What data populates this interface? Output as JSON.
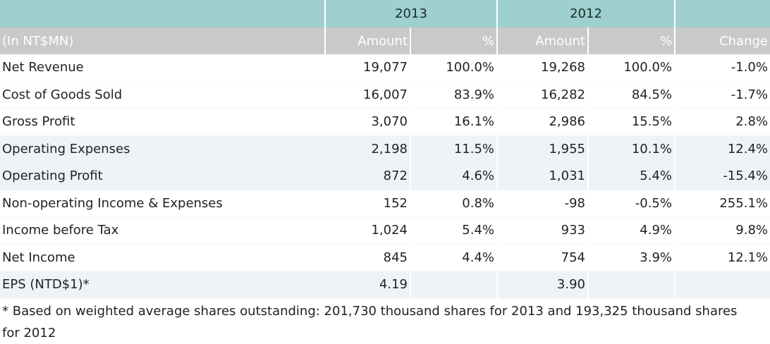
{
  "table": {
    "years": [
      "2013",
      "2012"
    ],
    "unit_label": "(In NT$MN)",
    "col_amount": "Amount",
    "col_pct": "%",
    "col_change": "Change",
    "rows": [
      {
        "label": "Net Revenue",
        "a13": "19,077",
        "p13": "100.0%",
        "a12": "19,268",
        "p12": "100.0%",
        "chg": "-1.0%"
      },
      {
        "label": "Cost of Goods Sold",
        "a13": "16,007",
        "p13": "83.9%",
        "a12": "16,282",
        "p12": "84.5%",
        "chg": "-1.7%"
      },
      {
        "label": "Gross Profit",
        "a13": "3,070",
        "p13": "16.1%",
        "a12": "2,986",
        "p12": "15.5%",
        "chg": "2.8%"
      },
      {
        "label": "Operating Expenses",
        "a13": "2,198",
        "p13": "11.5%",
        "a12": "1,955",
        "p12": "10.1%",
        "chg": "12.4%"
      },
      {
        "label": "Operating Profit",
        "a13": "872",
        "p13": "4.6%",
        "a12": "1,031",
        "p12": "5.4%",
        "chg": "-15.4%"
      },
      {
        "label": "Non-operating Income & Expenses",
        "a13": "152",
        "p13": "0.8%",
        "a12": "-98",
        "p12": "-0.5%",
        "chg": "255.1%"
      },
      {
        "label": "Income before Tax",
        "a13": "1,024",
        "p13": "5.4%",
        "a12": "933",
        "p12": "4.9%",
        "chg": "9.8%"
      },
      {
        "label": "Net Income",
        "a13": "845",
        "p13": "4.4%",
        "a12": "754",
        "p12": "3.9%",
        "chg": "12.1%"
      },
      {
        "label": "EPS (NTD$1)*",
        "a13": "4.19",
        "p13": "",
        "a12": "3.90",
        "p12": "",
        "chg": ""
      }
    ]
  },
  "footnote": "* Based on weighted average shares outstanding: 201,730 thousand shares for 2013 and 193,325 thousand shares for 2012",
  "colors": {
    "header_teal": "#9fcfcf",
    "subheader_gray": "#c9c9c9",
    "row_shade": "#eef3f7"
  }
}
